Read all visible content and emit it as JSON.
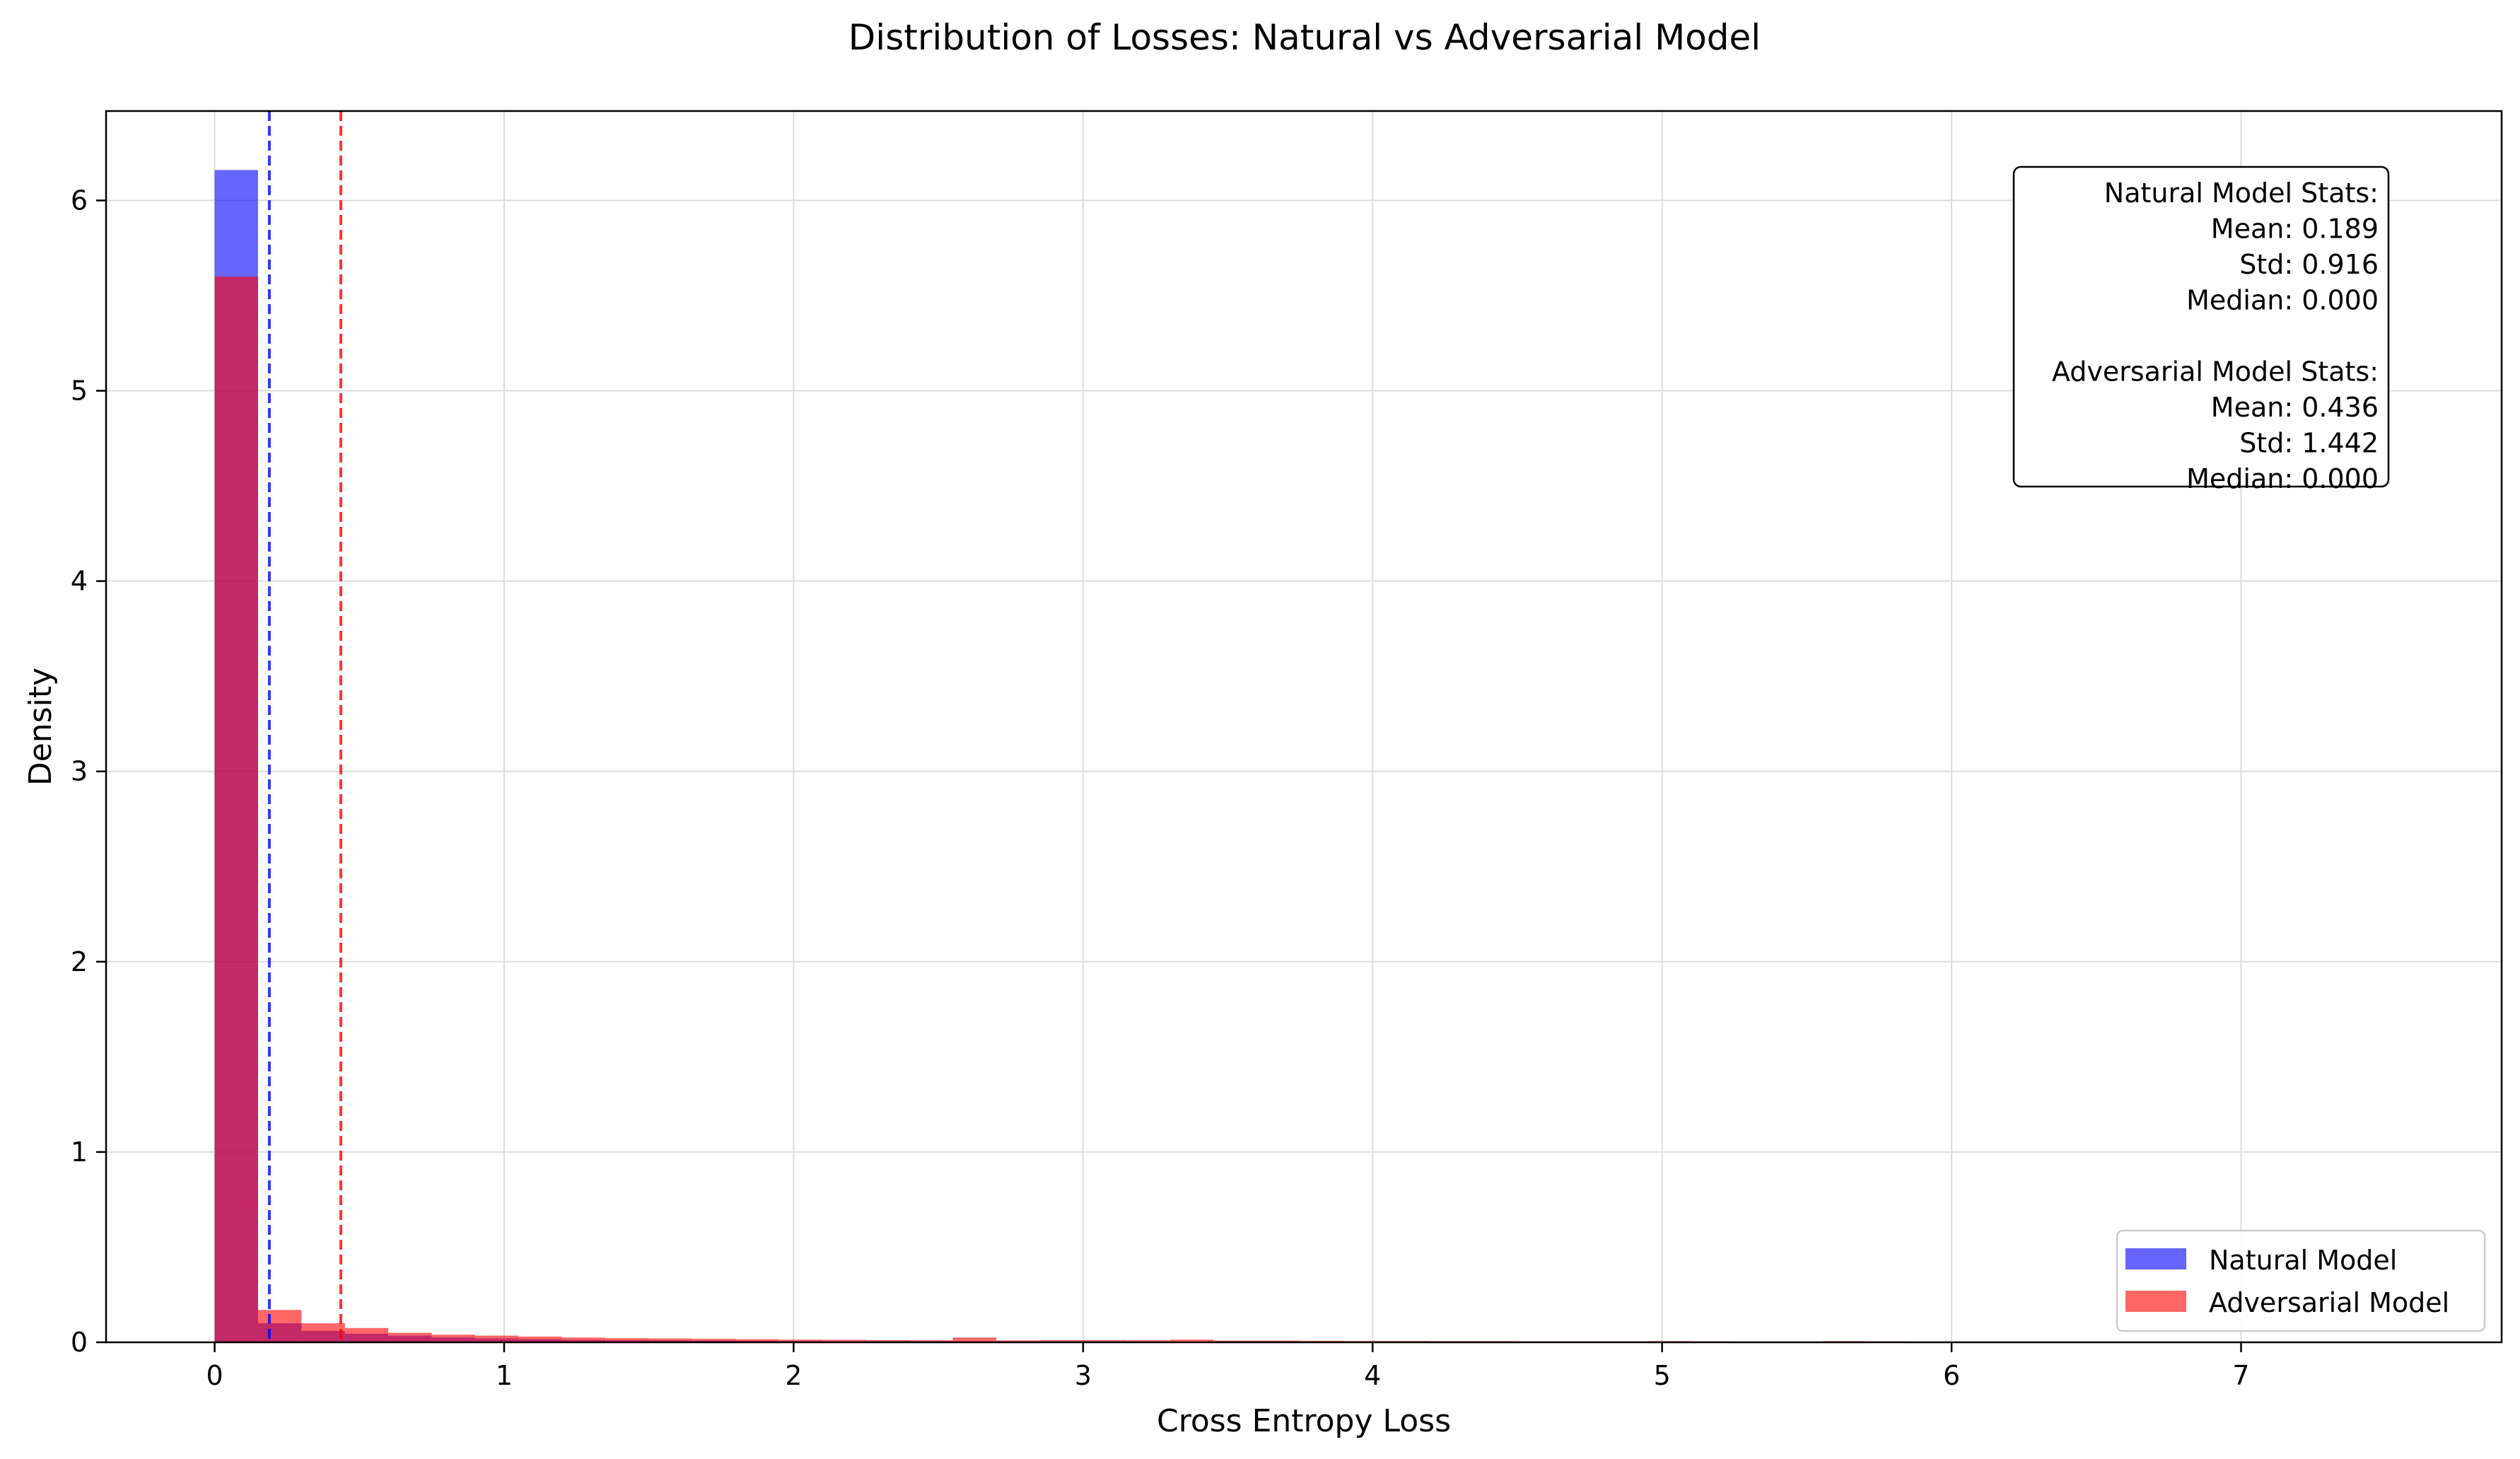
{
  "chart_data": {
    "type": "bar",
    "title": "Distribution of Losses: Natural vs Adversarial Model",
    "xlabel": "Cross Entropy Loss",
    "ylabel": "Density",
    "xlim": [
      -0.375,
      7.9
    ],
    "ylim": [
      0,
      6.47
    ],
    "x_ticks": [
      0,
      1,
      2,
      3,
      4,
      5,
      6,
      7
    ],
    "y_ticks": [
      0,
      1,
      2,
      3,
      4,
      5,
      6
    ],
    "grid": true,
    "legend_position": "lower-right",
    "bin_edges": [
      0,
      0.15,
      0.3,
      0.45,
      0.6,
      0.75,
      0.9,
      1.05,
      1.2,
      1.35,
      1.5,
      1.65,
      1.8,
      1.95,
      2.1,
      2.25,
      2.4,
      2.55,
      2.7,
      2.85,
      3.0,
      3.15,
      3.3,
      3.45,
      3.6,
      3.75,
      3.9,
      4.05,
      4.2,
      4.35,
      4.5,
      4.65,
      4.8,
      4.95,
      5.1,
      5.25,
      5.4,
      5.55,
      5.7,
      5.85,
      6.0,
      6.15,
      6.3,
      6.45,
      6.6,
      6.75,
      6.9,
      7.05,
      7.2
    ],
    "series": [
      {
        "name": "Natural Model",
        "color": "#0000ff",
        "opacity": 0.6,
        "values": [
          6.16,
          0.1,
          0.06,
          0.045,
          0.035,
          0.025,
          0.02,
          0.016,
          0.013,
          0.011,
          0.01,
          0.009,
          0.008,
          0.007,
          0.006,
          0.006,
          0.005,
          0.005,
          0.004,
          0.004,
          0.004,
          0.003,
          0.003,
          0.003,
          0.003,
          0.003,
          0.002,
          0.002,
          0.002,
          0.002,
          0.002,
          0.002,
          0.002,
          0.002,
          0.001,
          0.001,
          0.001,
          0.001,
          0.001,
          0.001,
          0.001,
          0.001,
          0.001,
          0.001,
          0.001,
          0.001,
          0.001,
          0.001
        ]
      },
      {
        "name": "Adversarial Model",
        "color": "#ff0000",
        "opacity": 0.6,
        "values": [
          5.6,
          0.17,
          0.1,
          0.075,
          0.05,
          0.04,
          0.035,
          0.03,
          0.025,
          0.022,
          0.02,
          0.018,
          0.016,
          0.014,
          0.013,
          0.012,
          0.011,
          0.025,
          0.01,
          0.012,
          0.012,
          0.011,
          0.014,
          0.009,
          0.009,
          0.008,
          0.007,
          0.007,
          0.006,
          0.006,
          0.005,
          0.005,
          0.005,
          0.006,
          0.005,
          0.004,
          0.004,
          0.006,
          0.005,
          0.004,
          0.003,
          0.003,
          0.003,
          0.002,
          0.002,
          0.002,
          0.002,
          0.002
        ]
      }
    ],
    "mean_lines": [
      {
        "value": 0.189,
        "color": "#0000ff",
        "style": "dashed"
      },
      {
        "value": 0.436,
        "color": "#ff0000",
        "style": "dashed"
      }
    ],
    "stats_box": {
      "position": "top-right",
      "lines": [
        "Natural Model Stats:",
        "Mean: 0.189",
        "Std: 0.916",
        "Median: 0.000",
        "",
        "Adversarial Model Stats:",
        "Mean: 0.436",
        "Std: 1.442",
        "Median: 0.000"
      ]
    }
  }
}
